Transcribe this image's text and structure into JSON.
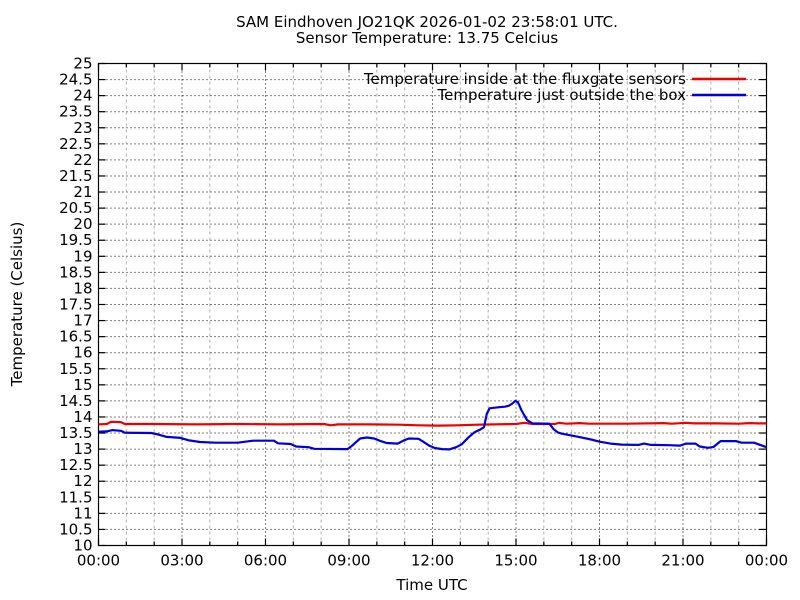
{
  "chart_data": {
    "type": "line",
    "title": "SAM Eindhoven JO21QK 2026-01-02 23:58:01 UTC.",
    "subtitle": "Sensor Temperature: 13.75 Celcius",
    "xlabel": "Time UTC",
    "ylabel": "Temperature (Celsius)",
    "xlim_hours": [
      0,
      24
    ],
    "ylim": [
      10,
      25
    ],
    "y_tick_step": 0.5,
    "x_minor_tick_step_hours": 1,
    "x_major_tick_step_hours": 3,
    "x_major_tick_labels": [
      "00:00",
      "03:00",
      "06:00",
      "09:00",
      "12:00",
      "15:00",
      "18:00",
      "21:00",
      "00:00"
    ],
    "grid": {
      "horizontal_lines": "black dotted at every 0.5 C",
      "vertical_major_lines": "black dotted every 3 hours",
      "vertical_minor_lines": "gray dashed every 1 hour",
      "border": "solid black rectangle with inward ticks on all sides"
    },
    "legend_position": "top-right inside plot",
    "colors": {
      "axis": "#000000",
      "minor_grid": "#b0b0b0",
      "background": "#ffffff"
    },
    "series": [
      {
        "name": "Temperature inside at the fluxgate sensors",
        "color": "#ee0000",
        "points_hour_temp": [
          [
            0,
            13.77
          ],
          [
            0.3,
            13.78
          ],
          [
            0.45,
            13.85
          ],
          [
            0.8,
            13.84
          ],
          [
            0.95,
            13.78
          ],
          [
            2,
            13.78
          ],
          [
            3.5,
            13.77
          ],
          [
            5,
            13.78
          ],
          [
            6.5,
            13.77
          ],
          [
            8.1,
            13.78
          ],
          [
            8.35,
            13.74
          ],
          [
            8.6,
            13.77
          ],
          [
            9.8,
            13.77
          ],
          [
            10.8,
            13.76
          ],
          [
            11.5,
            13.74
          ],
          [
            12.2,
            13.73
          ],
          [
            12.9,
            13.74
          ],
          [
            13.6,
            13.76
          ],
          [
            14.2,
            13.77
          ],
          [
            15,
            13.78
          ],
          [
            15.3,
            13.82
          ],
          [
            15.6,
            13.78
          ],
          [
            16.4,
            13.78
          ],
          [
            16.55,
            13.82
          ],
          [
            16.8,
            13.79
          ],
          [
            17.3,
            13.81
          ],
          [
            17.6,
            13.79
          ],
          [
            19,
            13.79
          ],
          [
            20.3,
            13.81
          ],
          [
            20.6,
            13.79
          ],
          [
            21.1,
            13.82
          ],
          [
            21.4,
            13.8
          ],
          [
            22.2,
            13.8
          ],
          [
            23,
            13.79
          ],
          [
            23.4,
            13.81
          ],
          [
            23.7,
            13.8
          ],
          [
            24,
            13.8
          ]
        ]
      },
      {
        "name": "Temperature just outside the box",
        "color": "#0000dd",
        "points_hour_temp": [
          [
            0,
            13.54
          ],
          [
            0.3,
            13.55
          ],
          [
            0.5,
            13.59
          ],
          [
            0.8,
            13.57
          ],
          [
            0.95,
            13.51
          ],
          [
            1.9,
            13.5
          ],
          [
            2.15,
            13.45
          ],
          [
            2.45,
            13.38
          ],
          [
            2.95,
            13.35
          ],
          [
            3.25,
            13.27
          ],
          [
            3.65,
            13.22
          ],
          [
            4.2,
            13.2
          ],
          [
            5,
            13.2
          ],
          [
            5.55,
            13.26
          ],
          [
            6.3,
            13.26
          ],
          [
            6.45,
            13.18
          ],
          [
            6.9,
            13.16
          ],
          [
            7.1,
            13.08
          ],
          [
            7.55,
            13.06
          ],
          [
            7.75,
            13.01
          ],
          [
            8.95,
            13.0
          ],
          [
            9.1,
            13.1
          ],
          [
            9.4,
            13.33
          ],
          [
            9.65,
            13.36
          ],
          [
            9.9,
            13.33
          ],
          [
            10.1,
            13.26
          ],
          [
            10.35,
            13.19
          ],
          [
            10.75,
            13.17
          ],
          [
            10.95,
            13.26
          ],
          [
            11.15,
            13.33
          ],
          [
            11.5,
            13.32
          ],
          [
            11.65,
            13.24
          ],
          [
            11.9,
            13.1
          ],
          [
            12.1,
            13.03
          ],
          [
            12.35,
            13.0
          ],
          [
            12.6,
            12.99
          ],
          [
            12.85,
            13.06
          ],
          [
            13.05,
            13.15
          ],
          [
            13.3,
            13.37
          ],
          [
            13.5,
            13.52
          ],
          [
            13.7,
            13.6
          ],
          [
            13.85,
            13.68
          ],
          [
            13.95,
            14.1
          ],
          [
            14.05,
            14.27
          ],
          [
            14.35,
            14.3
          ],
          [
            14.6,
            14.32
          ],
          [
            14.75,
            14.35
          ],
          [
            14.87,
            14.42
          ],
          [
            14.97,
            14.5
          ],
          [
            15.07,
            14.46
          ],
          [
            15.2,
            14.2
          ],
          [
            15.4,
            13.9
          ],
          [
            15.6,
            13.8
          ],
          [
            16.2,
            13.79
          ],
          [
            16.35,
            13.62
          ],
          [
            16.5,
            13.52
          ],
          [
            16.65,
            13.48
          ],
          [
            17,
            13.42
          ],
          [
            17.3,
            13.37
          ],
          [
            17.7,
            13.3
          ],
          [
            18,
            13.23
          ],
          [
            18.4,
            13.17
          ],
          [
            18.8,
            13.14
          ],
          [
            19.4,
            13.13
          ],
          [
            19.6,
            13.17
          ],
          [
            19.85,
            13.13
          ],
          [
            20.5,
            13.12
          ],
          [
            20.9,
            13.11
          ],
          [
            21.1,
            13.17
          ],
          [
            21.45,
            13.17
          ],
          [
            21.6,
            13.08
          ],
          [
            21.9,
            13.04
          ],
          [
            22.1,
            13.07
          ],
          [
            22.35,
            13.25
          ],
          [
            22.9,
            13.25
          ],
          [
            23.1,
            13.2
          ],
          [
            23.55,
            13.2
          ],
          [
            23.8,
            13.12
          ],
          [
            24,
            13.06
          ]
        ]
      }
    ]
  }
}
